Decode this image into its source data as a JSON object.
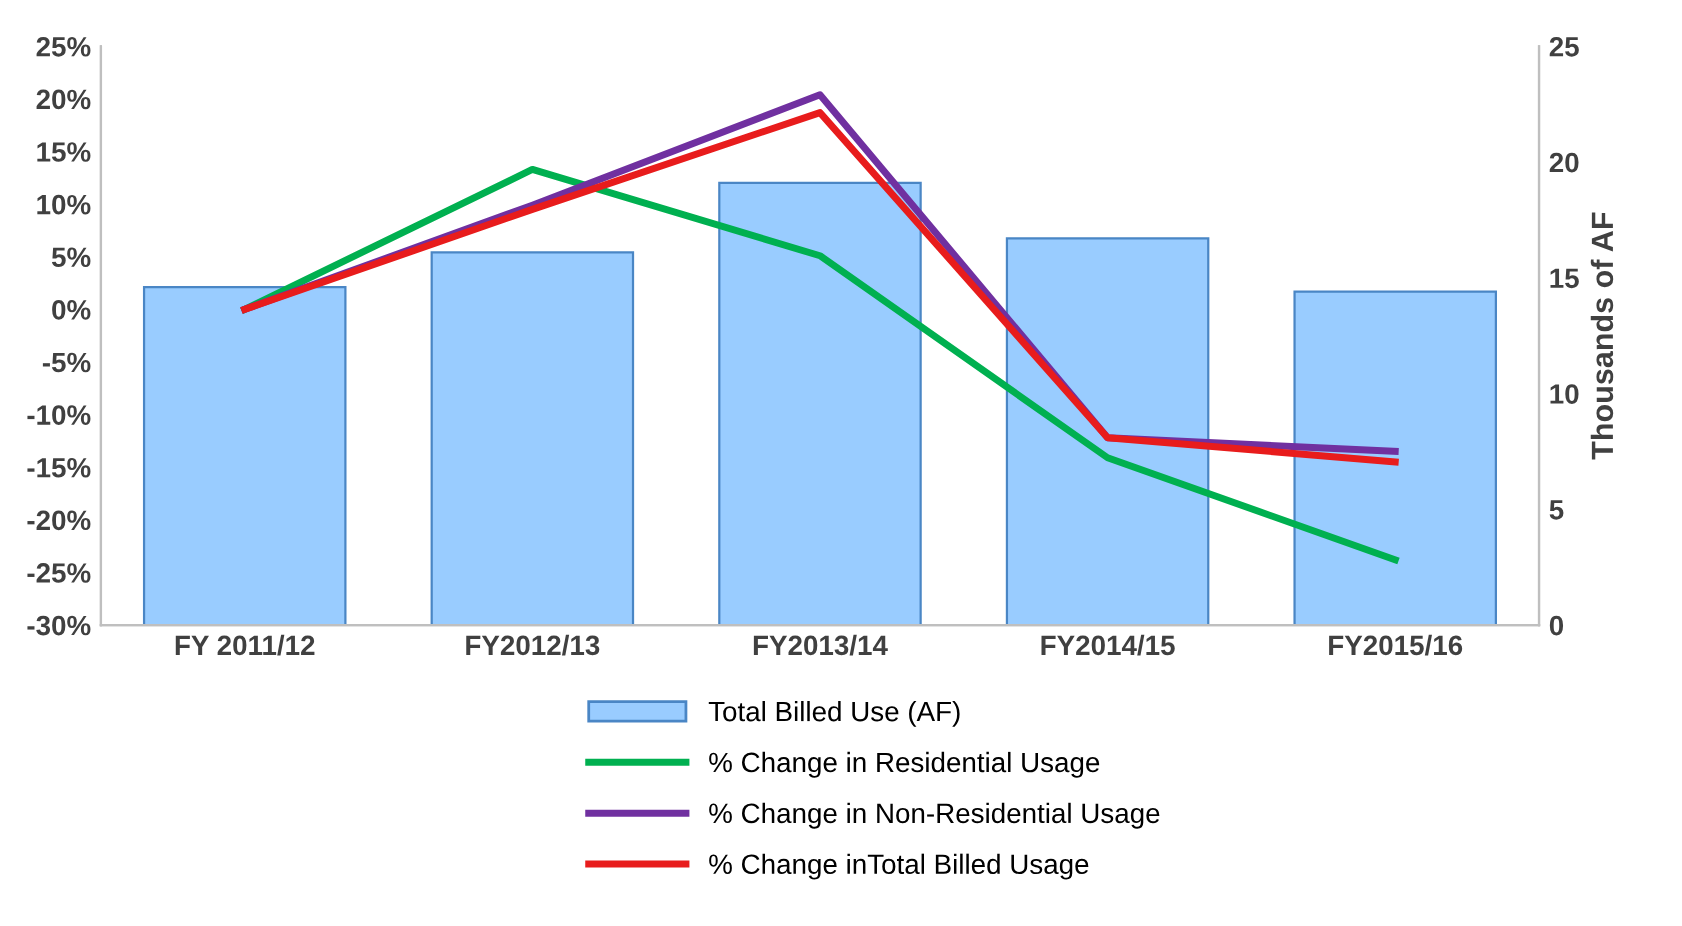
{
  "chart_data": {
    "type": "line",
    "categories": [
      "FY 2011/12",
      "FY2012/13",
      "FY2013/14",
      "FY2014/15",
      "FY2015/16"
    ],
    "series": [
      {
        "name": "Total Billed Use (AF)",
        "type": "bar",
        "axis": "y2",
        "color": "#99ccff",
        "values": [
          14.6,
          16.1,
          19.1,
          16.7,
          14.4
        ]
      },
      {
        "name": "% Change in Residential Usage",
        "color": "#00b050",
        "values": [
          0,
          13.3,
          5.1,
          -14.1,
          -23.8
        ]
      },
      {
        "name": "% Change in Non-Residential Usage",
        "color": "#7030a0",
        "values": [
          0,
          9.9,
          20.4,
          -12.2,
          -13.5
        ]
      },
      {
        "name": "% Change inTotal Billed Usage",
        "color": "#e81c1c",
        "values": [
          0,
          9.5,
          18.7,
          -12.2,
          -14.5
        ]
      }
    ],
    "ylim": [
      -30,
      25
    ],
    "yticks": [
      {
        "value": -30,
        "label": "-30%"
      },
      {
        "value": -25,
        "label": "-25%"
      },
      {
        "value": -20,
        "label": "-20%"
      },
      {
        "value": -15,
        "label": "-15%"
      },
      {
        "value": -10,
        "label": "-10%"
      },
      {
        "value": -5,
        "label": "-5%"
      },
      {
        "value": 0,
        "label": "0%"
      },
      {
        "value": 5,
        "label": "5%"
      },
      {
        "value": 10,
        "label": "10%"
      },
      {
        "value": 15,
        "label": "15%"
      },
      {
        "value": 20,
        "label": "20%"
      },
      {
        "value": 25,
        "label": "25%"
      }
    ],
    "y2lim": [
      0,
      25
    ],
    "y2ticks": [
      0,
      5,
      10,
      15,
      20,
      25
    ],
    "y2label": "Thousands of AF",
    "legend": "bottom",
    "grid": false,
    "marker": "none",
    "line_style": "solid"
  }
}
